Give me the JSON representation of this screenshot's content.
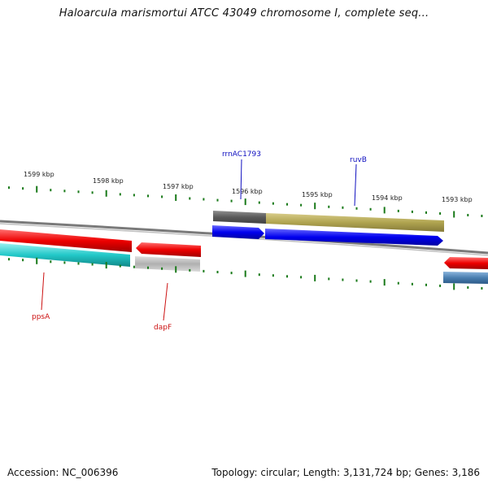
{
  "title": "Haloarcula marismortui ATCC 43049 chromosome I, complete seq...",
  "footer": {
    "accession": "Accession: NC_006396",
    "topology": "Topology: circular; Length: 3,131,724 bp; Genes: 3,186"
  },
  "ruler_labels": [
    "1599 kbp",
    "1598 kbp",
    "1597 kbp",
    "1596 kbp",
    "1595 kbp",
    "1594 kbp",
    "1593 kbp"
  ],
  "genes": {
    "rrnAC1793": "rrnAC1793",
    "ruvB": "ruvB",
    "ppsA": "ppsA",
    "dapF": "dapF"
  },
  "colors": {
    "forward_gene": "#0000ee",
    "reverse_gene": "#ee0000",
    "tick": "#1a7a1a",
    "backbone": "#888888",
    "label_blue": "#1010c0",
    "label_red": "#cc1010",
    "rna": "#22c8c8",
    "other": "#b0a450",
    "grey_feature": "#a8a8a8",
    "steel": "#4a7fb0"
  }
}
